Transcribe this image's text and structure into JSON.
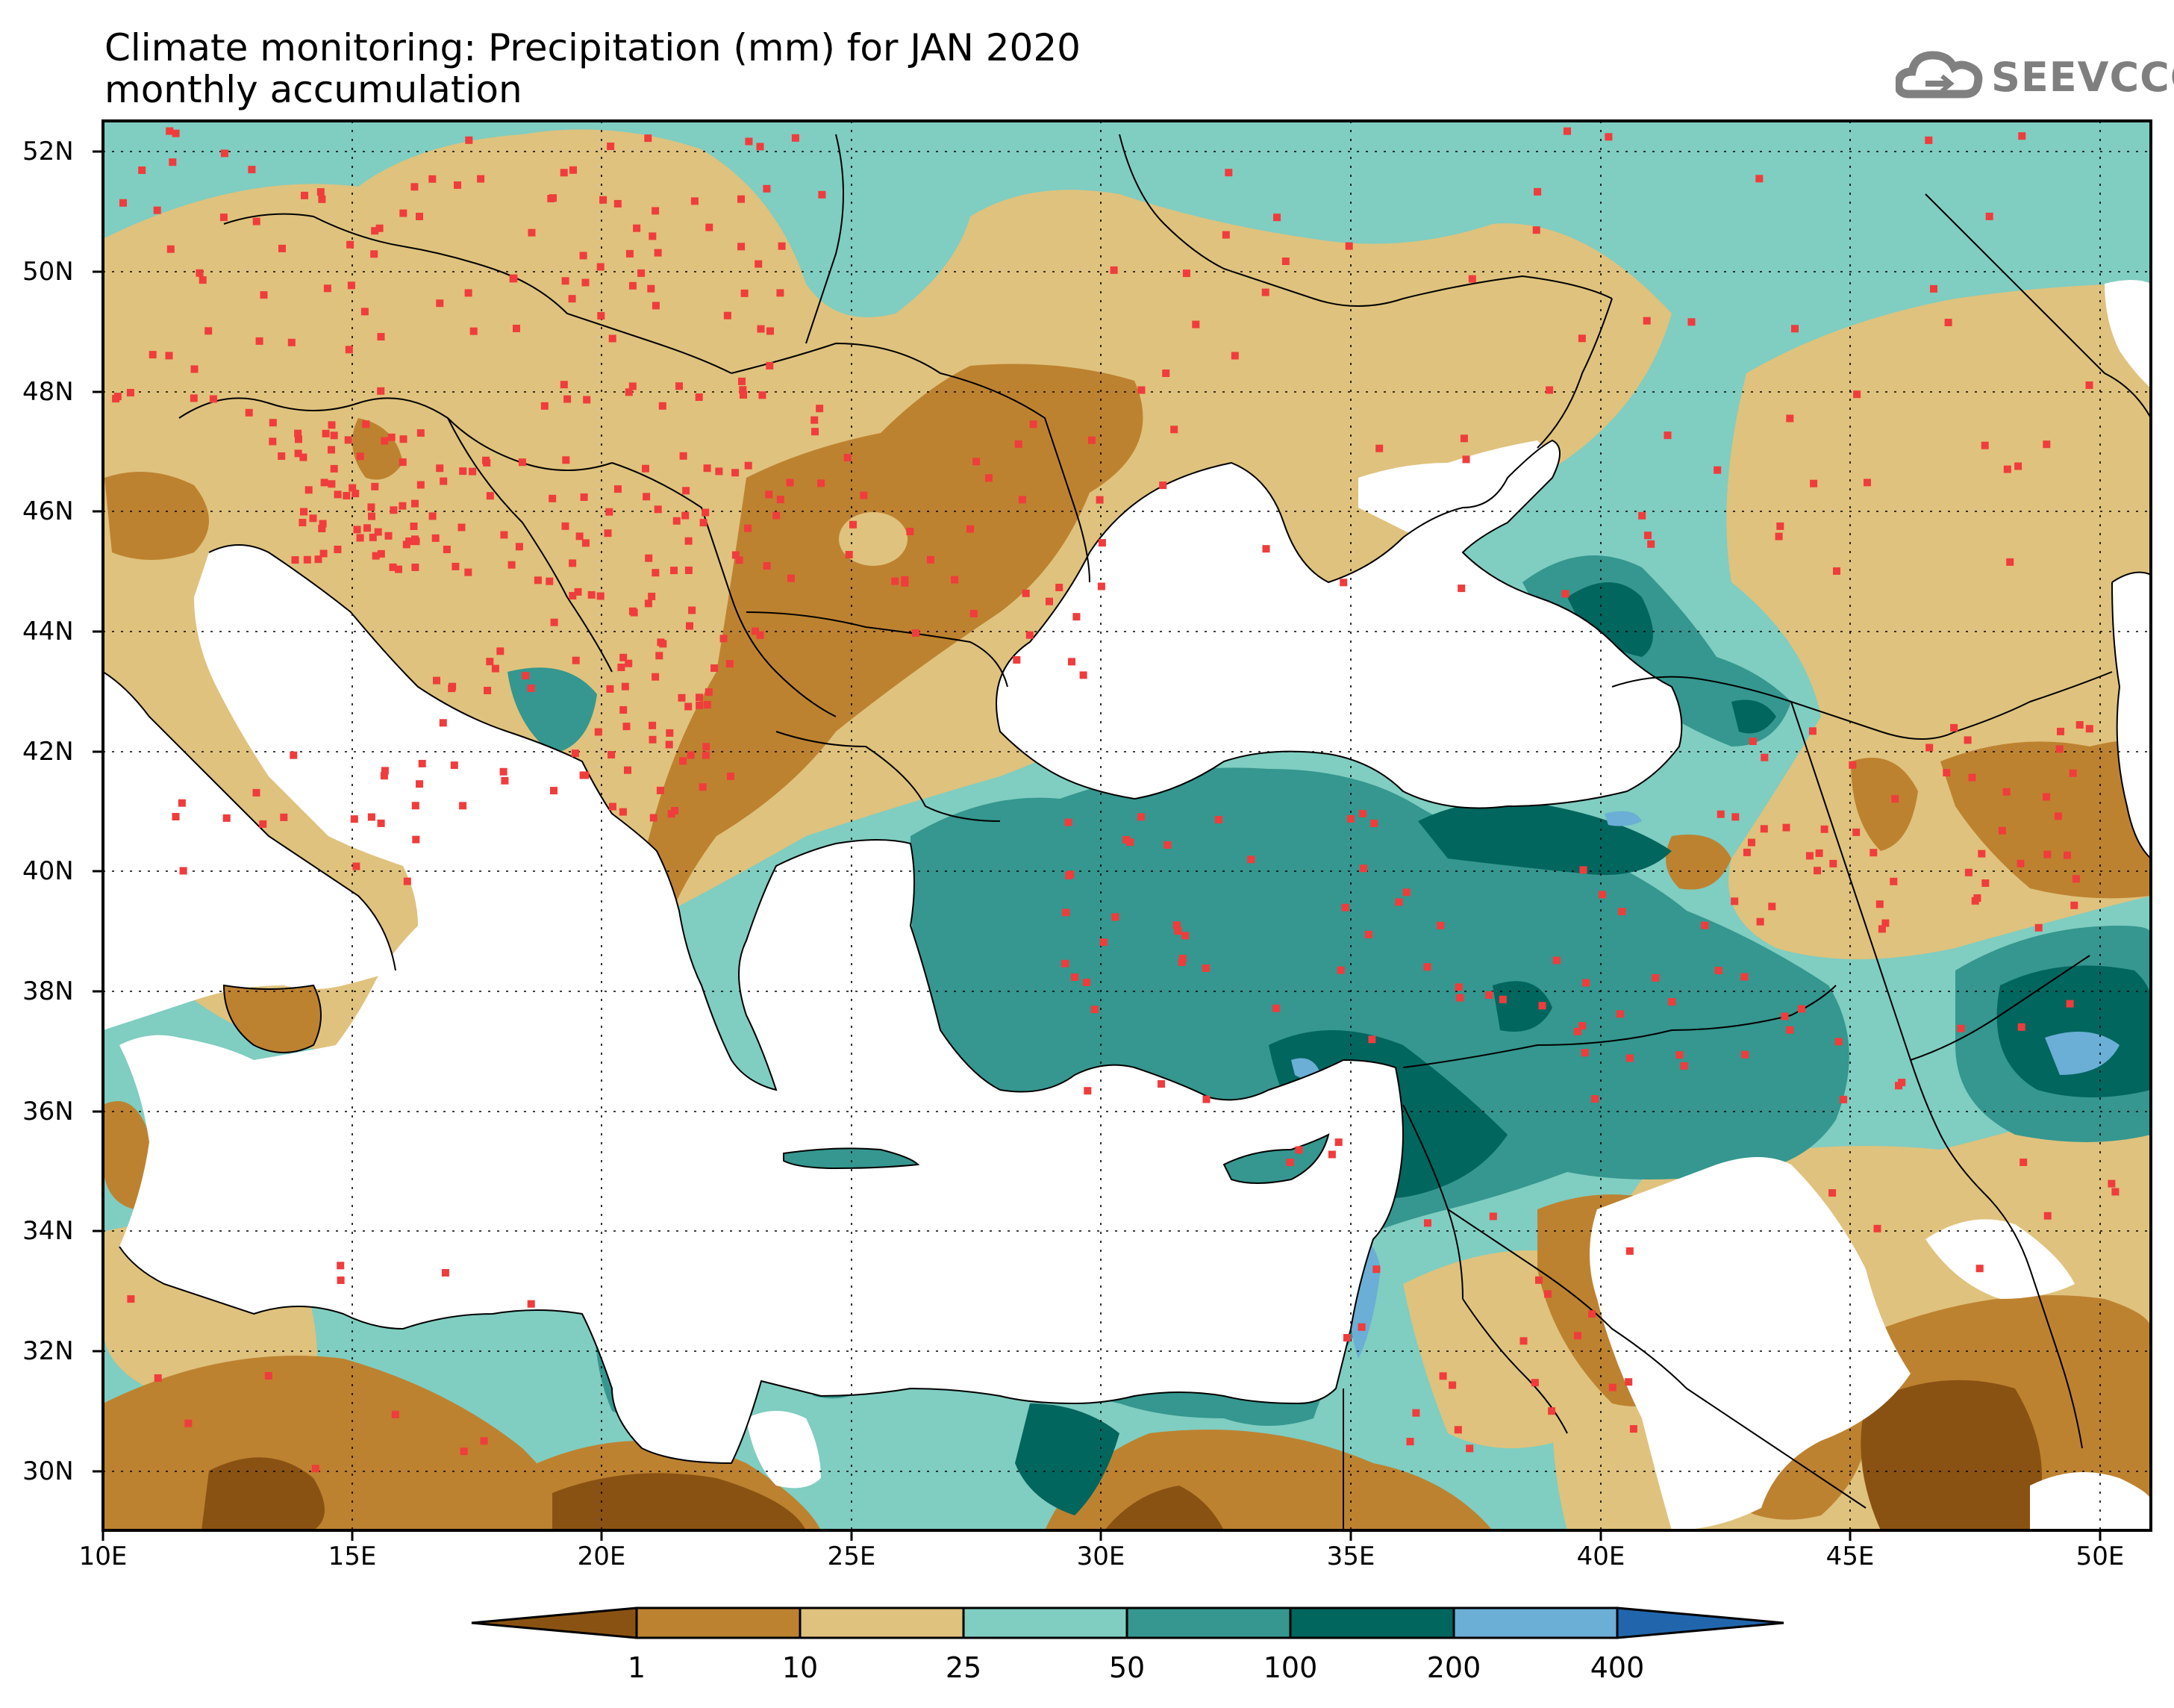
{
  "title": {
    "line1": "Climate monitoring: Precipitation (mm) for JAN 2020",
    "line2": "monthly accumulation"
  },
  "logo": {
    "text": "SEEVCCC",
    "icon": "cloud-logo-icon"
  },
  "axes": {
    "lat_labels": [
      "52N",
      "50N",
      "48N",
      "46N",
      "44N",
      "42N",
      "40N",
      "38N",
      "36N",
      "34N",
      "32N",
      "30N"
    ],
    "lon_labels": [
      "10E",
      "15E",
      "20E",
      "25E",
      "30E",
      "35E",
      "40E",
      "45E",
      "50E"
    ],
    "lat_range": [
      29,
      52.5
    ],
    "lon_range": [
      10,
      51
    ]
  },
  "colorbar": {
    "bounds": [
      "1",
      "10",
      "25",
      "50",
      "100",
      "200",
      "400"
    ],
    "colors": [
      "#8a5212",
      "#bd8230",
      "#dfc27d",
      "#80cdc1",
      "#35978f",
      "#01665e",
      "#6baed6",
      "#2166ac"
    ]
  },
  "map_colors": {
    "sea": "#ffffff",
    "dry_min": "#8a5212",
    "low": "#bd8230",
    "mid": "#dfc27d",
    "moderate": "#80cdc1",
    "wet": "#35978f",
    "very_wet": "#01665e",
    "extreme": "#6baed6",
    "station": "#f03c3c"
  }
}
